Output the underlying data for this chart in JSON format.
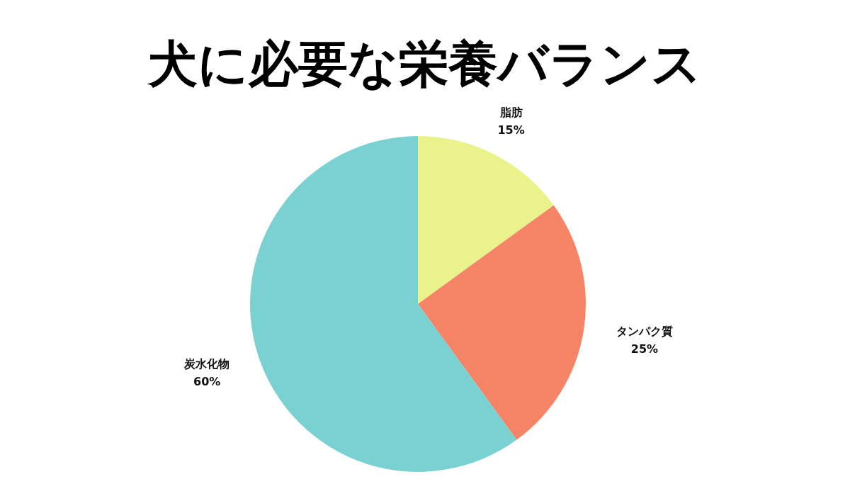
{
  "chart_data": {
    "type": "pie",
    "title": "犬に必要な栄養バランス",
    "categories": [
      "脂肪",
      "タンパク質",
      "炭水化物"
    ],
    "values": [
      15,
      25,
      60
    ],
    "colors": [
      "#e9f28b",
      "#f58466",
      "#79d2d1"
    ],
    "value_labels": [
      "15%",
      "25%",
      "60%"
    ]
  }
}
